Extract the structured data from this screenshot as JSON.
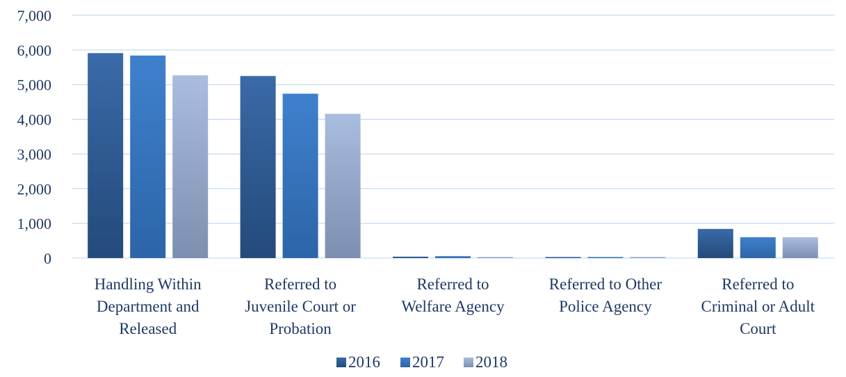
{
  "chart_data": {
    "type": "bar",
    "categories": [
      [
        "Handling Within",
        "Department and",
        "Released"
      ],
      [
        "Referred to",
        "Juvenile Court or",
        "Probation"
      ],
      [
        "Referred to",
        "Welfare Agency"
      ],
      [
        "Referred to Other",
        "Police Agency"
      ],
      [
        "Referred to",
        "Criminal or Adult",
        "Court"
      ]
    ],
    "series": [
      {
        "name": "2016",
        "values": [
          5910,
          5250,
          40,
          5,
          840
        ],
        "color_top": "#3a6aa8",
        "color_bottom": "#234a7a"
      },
      {
        "name": "2017",
        "values": [
          5840,
          4740,
          55,
          5,
          600
        ],
        "color_top": "#3f80cd",
        "color_bottom": "#2c65a8"
      },
      {
        "name": "2018",
        "values": [
          5270,
          4160,
          30,
          3,
          600
        ],
        "color_top": "#a9bde0",
        "color_bottom": "#7d8fb0"
      }
    ],
    "y_ticks": [
      "0",
      "1,000",
      "2,000",
      "3,000",
      "4,000",
      "5,000",
      "6,000",
      "7,000"
    ],
    "ylim": [
      0,
      7000
    ],
    "grid": true,
    "legend_position": "bottom"
  }
}
